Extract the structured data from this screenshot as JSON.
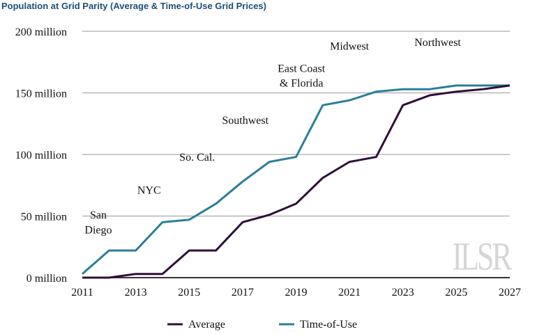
{
  "chart_data": {
    "type": "line",
    "title": "Population at Grid Parity (Average & Time-of-Use Grid Prices)",
    "xlabel": "",
    "ylabel": "",
    "x": [
      2011,
      2012,
      2013,
      2014,
      2015,
      2016,
      2017,
      2018,
      2019,
      2020,
      2021,
      2022,
      2023,
      2024,
      2025,
      2026,
      2027
    ],
    "xlim": [
      2011,
      2027
    ],
    "ylim": [
      0,
      200
    ],
    "x_ticks": [
      "2011",
      "2013",
      "2015",
      "2017",
      "2019",
      "2021",
      "2023",
      "2025",
      "2027"
    ],
    "y_ticks": [
      {
        "value": 0,
        "label": "0 million"
      },
      {
        "value": 50,
        "label": "50 million"
      },
      {
        "value": 100,
        "label": "100 million"
      },
      {
        "value": 150,
        "label": "150 million"
      },
      {
        "value": 200,
        "label": "200 million"
      }
    ],
    "grid": true,
    "legend_placement": "bottom",
    "series": [
      {
        "name": "Average",
        "color": "#2e0f3a",
        "values": [
          0,
          0,
          3,
          3,
          22,
          22,
          45,
          51,
          60,
          81,
          94,
          98,
          140,
          148,
          151,
          153,
          156
        ]
      },
      {
        "name": "Time-of-Use",
        "color": "#2a7f98",
        "values": [
          3,
          22,
          22,
          45,
          47,
          60,
          78,
          94,
          98,
          140,
          144,
          151,
          153,
          153,
          156,
          156,
          156
        ]
      }
    ],
    "annotations": [
      {
        "text": "San",
        "x": 2011.6,
        "y": 48
      },
      {
        "text": "Diego",
        "x": 2011.6,
        "y": 36
      },
      {
        "text": "NYC",
        "x": 2013.5,
        "y": 68
      },
      {
        "text": "So. Cal.",
        "x": 2015.3,
        "y": 95
      },
      {
        "text": "Southwest",
        "x": 2017.1,
        "y": 125
      },
      {
        "text": "East Coast",
        "x": 2019.2,
        "y": 167
      },
      {
        "text": "& Florida",
        "x": 2019.2,
        "y": 155
      },
      {
        "text": "Midwest",
        "x": 2021.0,
        "y": 185
      },
      {
        "text": "Northwest",
        "x": 2024.3,
        "y": 188
      }
    ],
    "logo": "ILSR"
  }
}
